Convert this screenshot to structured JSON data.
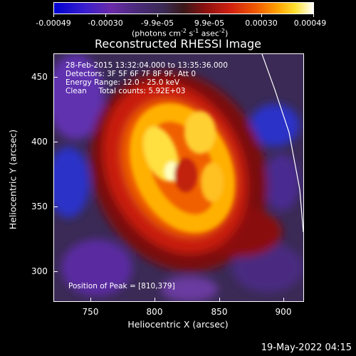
{
  "colorbar": {
    "labels": [
      "-0.00049",
      "-0.00030",
      "-9.9e-05",
      "9.9e-05",
      "0.00030",
      "0.00049"
    ],
    "units_prefix": "(photons cm",
    "units_exp1": "-2",
    "units_mid": " s",
    "units_exp2": "-1",
    "units_mid2": " asec",
    "units_exp3": "-2",
    "units_suffix": ")"
  },
  "title": "Reconstructed RHESSI Image",
  "info": {
    "line1": "28-Feb-2015 13:32:04.000 to 13:35:36.000",
    "line2": "Detectors: 3F 5F 6F 7F 8F 9F, Att 0",
    "line3": "Energy Range: 12.0 - 25.0 keV",
    "line4": "Clean     Total counts: 5.92E+03"
  },
  "peak": "Position of Peak = [810,379]",
  "axes": {
    "xlabel": "Heliocentric X (arcsec)",
    "ylabel": "Heliocentric Y (arcsec)",
    "xticks": [
      "750",
      "800",
      "850",
      "900"
    ],
    "yticks": [
      "450",
      "400",
      "350",
      "300"
    ]
  },
  "timestamp": "19-May-2022 04:15",
  "colors": {
    "low": "#0000d0",
    "mid": "#3a2a55",
    "high": "#ffffff"
  }
}
